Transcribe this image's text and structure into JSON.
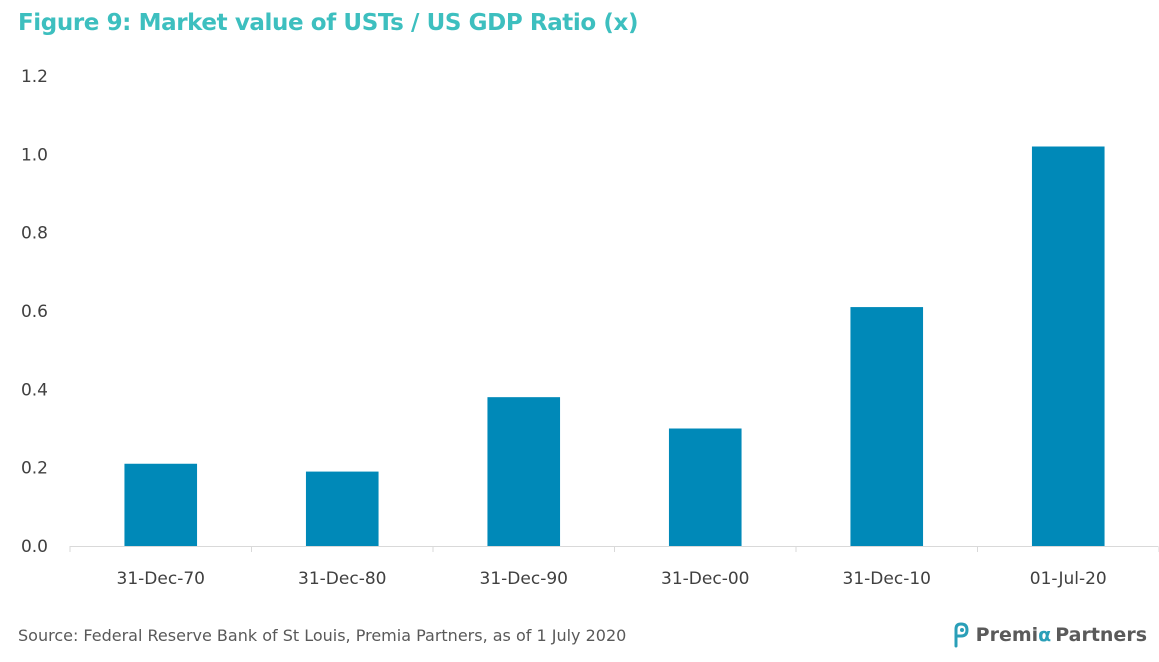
{
  "title": "Figure 9: Market value of USTs / US GDP Ratio (x)",
  "source": "Source: Federal Reserve Bank of St Louis, Premia Partners, as of 1 July 2020",
  "logo": {
    "prefix": "Premi",
    "alpha": "α",
    "suffix": "Partners"
  },
  "colors": {
    "title": "#3dbfbf",
    "bar": "#0089b8",
    "axis": "#d9d9d9",
    "text": "#404040"
  },
  "chart_data": {
    "type": "bar",
    "title": "Figure 9: Market value of USTs / US GDP Ratio (x)",
    "categories": [
      "31-Dec-70",
      "31-Dec-80",
      "31-Dec-90",
      "31-Dec-00",
      "31-Dec-10",
      "01-Jul-20"
    ],
    "values": [
      0.21,
      0.19,
      0.38,
      0.3,
      0.61,
      1.02
    ],
    "xlabel": "",
    "ylabel": "",
    "ylim": [
      0,
      1.2
    ],
    "yticks": [
      "0.0",
      "0.2",
      "0.4",
      "0.6",
      "0.8",
      "1.0",
      "1.2"
    ],
    "grid": false,
    "legend": "none"
  }
}
